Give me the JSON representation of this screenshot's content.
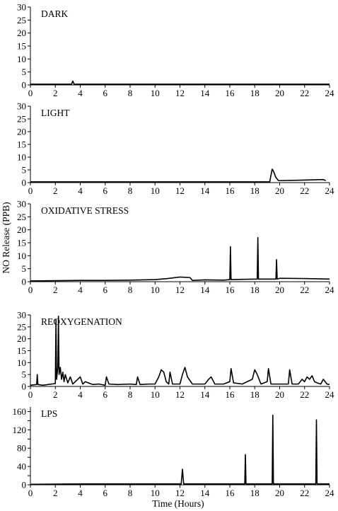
{
  "figure": {
    "ylabel": "NO Release (PPB)",
    "xlabel": "Time (Hours)"
  },
  "chart_data": [
    {
      "type": "line",
      "title": "DARK",
      "xlim": [
        0,
        24
      ],
      "ylim": [
        0,
        30
      ],
      "xticks": [
        0,
        2,
        4,
        6,
        8,
        10,
        12,
        14,
        16,
        18,
        20,
        22,
        24
      ],
      "yticks": [
        0,
        5,
        10,
        15,
        20,
        25,
        30
      ],
      "series": [
        {
          "x": [
            0,
            3.3,
            3.4,
            3.5,
            12,
            24
          ],
          "y": [
            0.3,
            0.3,
            1.5,
            0.3,
            0.3,
            0.3
          ]
        }
      ]
    },
    {
      "type": "line",
      "title": "LIGHT",
      "xlim": [
        0,
        24
      ],
      "ylim": [
        0,
        30
      ],
      "xticks": [
        0,
        2,
        4,
        6,
        8,
        10,
        12,
        14,
        16,
        18,
        20,
        22,
        24
      ],
      "yticks": [
        0,
        5,
        10,
        15,
        20,
        25,
        30
      ],
      "series": [
        {
          "x": [
            0,
            19.2,
            19.4,
            19.5,
            19.7,
            19.9,
            20.2,
            22,
            23.5,
            23.7
          ],
          "y": [
            0.3,
            0.3,
            5.3,
            4.5,
            2.0,
            0.8,
            0.8,
            1.0,
            1.2,
            0.8
          ]
        }
      ]
    },
    {
      "type": "line",
      "title": "OXIDATIVE STRESS",
      "xlim": [
        0,
        24
      ],
      "ylim": [
        0,
        30
      ],
      "xticks": [
        0,
        2,
        4,
        6,
        8,
        10,
        12,
        14,
        16,
        18,
        20,
        22,
        24
      ],
      "yticks": [
        0,
        5,
        10,
        15,
        20,
        25,
        30
      ],
      "series": [
        {
          "x": [
            0,
            2,
            4,
            6,
            8,
            10,
            11,
            12,
            12.8,
            13,
            14,
            15.5,
            16,
            16.05,
            16.1,
            17,
            18.2,
            18.25,
            18.3,
            19,
            19.7,
            19.75,
            19.8,
            20,
            22,
            24
          ],
          "y": [
            0.3,
            0.4,
            0.5,
            0.5,
            0.6,
            0.8,
            1.2,
            1.8,
            1.6,
            0.5,
            0.7,
            0.6,
            0.8,
            13.5,
            0.8,
            0.9,
            1.0,
            17.0,
            1.0,
            1.0,
            1.0,
            8.5,
            1.0,
            1.3,
            1.2,
            1.0
          ]
        }
      ]
    },
    {
      "type": "line",
      "title": "REOXYGENATION",
      "xlim": [
        0,
        24
      ],
      "ylim": [
        0,
        30
      ],
      "xticks": [
        0,
        2,
        4,
        6,
        8,
        10,
        12,
        14,
        16,
        18,
        20,
        22,
        24
      ],
      "yticks": [
        0,
        5,
        10,
        15,
        20,
        25,
        30
      ],
      "series": [
        {
          "x": [
            0,
            0.5,
            0.55,
            0.6,
            1.0,
            1.4,
            1.7,
            2.0,
            2.05,
            2.1,
            2.2,
            2.25,
            2.3,
            2.4,
            2.5,
            2.6,
            2.7,
            2.8,
            3.0,
            3.2,
            3.4,
            3.6,
            4.0,
            4.2,
            4.4,
            5.0,
            5.5,
            6.0,
            6.1,
            6.3,
            7.0,
            8.0,
            8.5,
            8.6,
            8.8,
            9.5,
            10.0,
            10.3,
            10.5,
            10.7,
            10.9,
            11.1,
            11.2,
            11.4,
            12.0,
            12.2,
            12.4,
            12.6,
            13.0,
            14.0,
            14.3,
            14.5,
            14.8,
            15.5,
            16.0,
            16.1,
            16.3,
            17.0,
            17.8,
            18.0,
            18.2,
            18.5,
            19.0,
            19.1,
            19.3,
            20.0,
            20.7,
            20.8,
            21.0,
            21.5,
            21.8,
            22.0,
            22.2,
            22.4,
            22.6,
            22.8,
            23.0,
            23.3,
            23.5,
            23.8,
            24.0
          ],
          "y": [
            0.5,
            0.8,
            5.0,
            0.8,
            0.5,
            0.8,
            1.0,
            1.2,
            28.0,
            3.0,
            8.0,
            29.5,
            5.0,
            8.0,
            3.0,
            6.0,
            2.0,
            5.0,
            1.5,
            4.0,
            1.0,
            2.0,
            4.0,
            1.0,
            2.0,
            0.8,
            1.0,
            0.5,
            4.0,
            1.0,
            0.8,
            1.0,
            0.8,
            4.0,
            0.8,
            1.0,
            1.0,
            4.0,
            7.0,
            6.0,
            2.0,
            1.0,
            6.0,
            1.0,
            1.0,
            5.0,
            8.0,
            4.0,
            1.0,
            1.0,
            3.0,
            4.0,
            1.0,
            1.0,
            2.0,
            7.5,
            1.5,
            1.0,
            3.0,
            7.0,
            5.0,
            1.0,
            2.0,
            7.5,
            1.0,
            1.0,
            1.0,
            7.0,
            1.0,
            1.0,
            3.0,
            2.0,
            4.0,
            3.0,
            4.5,
            2.0,
            1.5,
            1.0,
            3.0,
            1.0,
            0.8
          ]
        }
      ]
    },
    {
      "type": "line",
      "title": "LPS",
      "xlim": [
        0,
        24
      ],
      "ylim": [
        0,
        170
      ],
      "xticks": [
        0,
        2,
        4,
        6,
        8,
        10,
        12,
        14,
        16,
        18,
        20,
        22,
        24
      ],
      "yticks": [
        0,
        20,
        40,
        60,
        80,
        100,
        120,
        140,
        160
      ],
      "ytick_labels": [
        "0",
        "",
        "40",
        "",
        "80",
        "",
        "120",
        "",
        "160"
      ],
      "series": [
        {
          "x": [
            0,
            4,
            8,
            12.0,
            12.1,
            12.2,
            12.3,
            16,
            17.2,
            17.25,
            17.3,
            19.4,
            19.45,
            19.5,
            22.9,
            22.95,
            23.0,
            24.0
          ],
          "y": [
            1.0,
            2.0,
            2.0,
            2.0,
            2.0,
            34.0,
            2.0,
            2.0,
            2.0,
            66.0,
            2.0,
            2.0,
            152.0,
            2.0,
            2.0,
            142.0,
            2.0,
            2.0
          ]
        }
      ]
    }
  ]
}
